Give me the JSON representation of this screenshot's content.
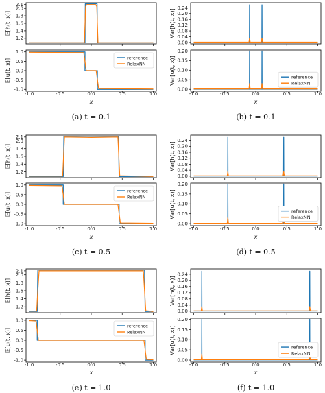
{
  "colors": {
    "reference": "#1f77b4",
    "relaxnn": "#ff7f0e"
  },
  "legend": {
    "reference": "reference",
    "relaxnn": "RelaxNN",
    "placement": "right"
  },
  "labels": {
    "xlabel": "x",
    "mean_h": "𝔼[h(t, x)]",
    "mean_u": "𝔼[u(t, x)]",
    "var_h": "Var[h(t, x)]",
    "var_u": "Var[u(t, x)]"
  },
  "captions": [
    "(a) t = 0.1",
    "(b) t = 0.1",
    "(c) t = 0.5",
    "(d) t = 0.5",
    "(e) t = 1.0",
    "(f) t = 1.0"
  ],
  "chart_data": [
    {
      "type": "line",
      "panel": "a",
      "time": 0.1,
      "top": {
        "ylabel": "𝔼[h(t, x)]",
        "yticks": [
          "1.2",
          "1.4",
          "1.6",
          "1.8",
          "2.0",
          "2.1"
        ],
        "ylim": [
          1.05,
          2.15
        ],
        "series": [
          {
            "name": "reference",
            "x": [
              -1,
              -0.1,
              -0.095,
              -0.085,
              0.085,
              0.095,
              0.1,
              1
            ],
            "y": [
              1.08,
              1.08,
              2.12,
              2.12,
              2.12,
              2.12,
              1.08,
              1.08
            ]
          },
          {
            "name": "RelaxNN",
            "x": [
              -1,
              -0.11,
              -0.09,
              -0.07,
              0.07,
              0.09,
              0.11,
              1
            ],
            "y": [
              1.08,
              1.08,
              2.05,
              2.1,
              2.1,
              2.05,
              1.08,
              1.08
            ]
          }
        ]
      },
      "bottom": {
        "ylabel": "𝔼[u(t, x)]",
        "yticks": [
          "-1.0",
          "-0.5",
          "0.0",
          "0.5",
          "1.0"
        ],
        "ylim": [
          -1.1,
          1.1
        ],
        "series": [
          {
            "name": "reference",
            "x": [
              -1,
              -0.1,
              -0.1,
              0.1,
              0.1,
              1
            ],
            "y": [
              1,
              1,
              0,
              0,
              -1,
              -1
            ]
          },
          {
            "name": "RelaxNN",
            "x": [
              -1,
              -0.12,
              -0.08,
              0.08,
              0.12,
              1
            ],
            "y": [
              0.98,
              0.96,
              0,
              0,
              -0.96,
              -0.98
            ]
          }
        ]
      },
      "xticks": [
        "-1.0",
        "-0.5",
        "0.0",
        "0.5",
        "1.0"
      ],
      "xlim": [
        -1.05,
        1.05
      ]
    },
    {
      "type": "line",
      "panel": "b",
      "time": 0.1,
      "top": {
        "ylabel": "Var[h(t, x)]",
        "yticks": [
          "0.00",
          "0.04",
          "0.08",
          "0.12",
          "0.16",
          "0.20",
          "0.24"
        ],
        "ylim": [
          -0.01,
          0.275
        ],
        "series": [
          {
            "name": "reference",
            "x": [
              -1,
              -0.102,
              -0.1,
              -0.098,
              0.098,
              0.1,
              0.102,
              1
            ],
            "y": [
              0.001,
              0.001,
              0.26,
              0.001,
              0.001,
              0.26,
              0.001,
              0.001
            ]
          },
          {
            "name": "RelaxNN",
            "x": [
              -1,
              -0.11,
              -0.1,
              -0.09,
              0.09,
              0.1,
              0.11,
              1
            ],
            "y": [
              0.002,
              0.002,
              0.03,
              0.002,
              0.002,
              0.03,
              0.002,
              0.002
            ]
          }
        ]
      },
      "bottom": {
        "ylabel": "Var[u(t, x)]",
        "yticks": [
          "0.00",
          "0.05",
          "0.10",
          "0.15",
          "0.20"
        ],
        "ylim": [
          -0.01,
          0.205
        ],
        "series": [
          {
            "name": "reference",
            "x": [
              -1,
              -0.102,
              -0.1,
              -0.098,
              0.098,
              0.1,
              0.102,
              1
            ],
            "y": [
              0.001,
              0.001,
              0.2,
              0.001,
              0.001,
              0.2,
              0.001,
              0.001
            ]
          },
          {
            "name": "RelaxNN",
            "x": [
              -1,
              -0.11,
              -0.1,
              -0.09,
              0.09,
              0.1,
              0.11,
              1
            ],
            "y": [
              0.002,
              0.002,
              0.03,
              0.002,
              0.002,
              0.03,
              0.002,
              0.002
            ]
          }
        ]
      },
      "xticks": [
        "-1.0",
        "-0.5",
        "0.0",
        "0.5",
        "1.0"
      ],
      "xlim": [
        -1.05,
        1.05
      ]
    },
    {
      "type": "line",
      "panel": "c",
      "time": 0.5,
      "top": {
        "ylabel": "𝔼[h(t, x)]",
        "yticks": [
          "1.2",
          "1.4",
          "1.6",
          "1.8",
          "2.0",
          "2.1"
        ],
        "ylim": [
          1.05,
          2.15
        ],
        "series": [
          {
            "name": "reference",
            "x": [
              -1,
              -0.45,
              -0.44,
              0.44,
              0.45,
              1
            ],
            "y": [
              1.08,
              1.08,
              2.12,
              2.12,
              1.08,
              1.08
            ]
          },
          {
            "name": "RelaxNN",
            "x": [
              -1,
              -0.46,
              -0.43,
              0.0,
              0.43,
              0.46,
              1
            ],
            "y": [
              1.09,
              1.09,
              2.1,
              2.09,
              2.1,
              1.1,
              1.08
            ]
          }
        ]
      },
      "bottom": {
        "ylabel": "𝔼[u(t, x)]",
        "yticks": [
          "-1.0",
          "-0.5",
          "0.0",
          "0.5",
          "1.0"
        ],
        "ylim": [
          -1.1,
          1.1
        ],
        "series": [
          {
            "name": "reference",
            "x": [
              -1,
              -0.45,
              -0.45,
              0.45,
              0.45,
              1
            ],
            "y": [
              1,
              1,
              0,
              0,
              -1,
              -1
            ]
          },
          {
            "name": "RelaxNN",
            "x": [
              -1,
              -0.47,
              -0.43,
              0.43,
              0.47,
              1
            ],
            "y": [
              0.98,
              0.96,
              0,
              0,
              -0.96,
              -0.98
            ]
          }
        ]
      },
      "xticks": [
        "-1.0",
        "-0.5",
        "0.0",
        "0.5",
        "1.0"
      ],
      "xlim": [
        -1.05,
        1.05
      ]
    },
    {
      "type": "line",
      "panel": "d",
      "time": 0.5,
      "top": {
        "ylabel": "Var[h(t, x)]",
        "yticks": [
          "0.00",
          "0.04",
          "0.08",
          "0.12",
          "0.16",
          "0.20",
          "0.24"
        ],
        "ylim": [
          -0.01,
          0.275
        ],
        "series": [
          {
            "name": "reference",
            "x": [
              -1,
              -0.452,
              -0.45,
              -0.448,
              0.448,
              0.45,
              0.452,
              1
            ],
            "y": [
              0.001,
              0.001,
              0.26,
              0.001,
              0.001,
              0.26,
              0.001,
              0.001
            ]
          },
          {
            "name": "RelaxNN",
            "x": [
              -1,
              -0.46,
              -0.45,
              -0.44,
              0.44,
              0.45,
              0.46,
              1
            ],
            "y": [
              0.002,
              0.002,
              0.03,
              0.002,
              0.002,
              0.03,
              0.002,
              0.002
            ]
          }
        ]
      },
      "bottom": {
        "ylabel": "Var[u(t, x)]",
        "yticks": [
          "0.00",
          "0.05",
          "0.10",
          "0.15",
          "0.20"
        ],
        "ylim": [
          -0.01,
          0.205
        ],
        "series": [
          {
            "name": "reference",
            "x": [
              -1,
              -0.452,
              -0.45,
              -0.448,
              0.448,
              0.45,
              0.452,
              1
            ],
            "y": [
              0.001,
              0.001,
              0.2,
              0.001,
              0.001,
              0.2,
              0.001,
              0.001
            ]
          },
          {
            "name": "RelaxNN",
            "x": [
              -1,
              -0.46,
              -0.45,
              -0.44,
              0.44,
              0.45,
              0.46,
              1
            ],
            "y": [
              0.002,
              0.002,
              0.03,
              0.002,
              0.002,
              0.03,
              0.002,
              0.002
            ]
          }
        ]
      },
      "xticks": [
        "-1.0",
        "-0.5",
        "0.0",
        "0.5",
        "1.0"
      ],
      "xlim": [
        -1.05,
        1.05
      ]
    },
    {
      "type": "line",
      "panel": "e",
      "time": 1.0,
      "top": {
        "ylabel": "𝔼[h(t, x)]",
        "yticks": [
          "1.2",
          "1.4",
          "1.6",
          "1.8",
          "2.0",
          "2.1"
        ],
        "ylim": [
          1.05,
          2.15
        ],
        "series": [
          {
            "name": "reference",
            "x": [
              -1,
              -0.87,
              -0.86,
              0.86,
              0.87,
              1
            ],
            "y": [
              1.08,
              1.08,
              2.12,
              2.12,
              1.08,
              1.08
            ]
          },
          {
            "name": "RelaxNN",
            "x": [
              -1,
              -0.88,
              -0.84,
              0.0,
              0.84,
              0.88,
              1
            ],
            "y": [
              1.09,
              1.09,
              2.1,
              2.1,
              2.1,
              1.1,
              1.08
            ]
          }
        ]
      },
      "bottom": {
        "ylabel": "𝔼[u(t, x)]",
        "yticks": [
          "-1.0",
          "-0.5",
          "0.0",
          "0.5",
          "1.0"
        ],
        "ylim": [
          -1.1,
          1.1
        ],
        "series": [
          {
            "name": "reference",
            "x": [
              -1,
              -0.87,
              -0.87,
              0.87,
              0.87,
              1
            ],
            "y": [
              1,
              1,
              0,
              0,
              -1,
              -1
            ]
          },
          {
            "name": "RelaxNN",
            "x": [
              -1,
              -0.89,
              -0.85,
              0.85,
              0.89,
              1
            ],
            "y": [
              0.98,
              0.96,
              0,
              0,
              -0.96,
              -0.98
            ]
          }
        ]
      },
      "xticks": [
        "-1.0",
        "-0.5",
        "0.0",
        "0.5",
        "1.0"
      ],
      "xlim": [
        -1.05,
        1.05
      ]
    },
    {
      "type": "line",
      "panel": "f",
      "time": 1.0,
      "top": {
        "ylabel": "Var[h(t, x)]",
        "yticks": [
          "0.00",
          "0.04",
          "0.08",
          "0.12",
          "0.16",
          "0.20",
          "0.24"
        ],
        "ylim": [
          -0.01,
          0.275
        ],
        "series": [
          {
            "name": "reference",
            "x": [
              -1,
              -0.872,
              -0.87,
              -0.868,
              0.868,
              0.87,
              0.872,
              1
            ],
            "y": [
              0.001,
              0.001,
              0.26,
              0.001,
              0.001,
              0.26,
              0.001,
              0.001
            ]
          },
          {
            "name": "RelaxNN",
            "x": [
              -1,
              -0.88,
              -0.87,
              -0.86,
              0.86,
              0.87,
              0.88,
              1
            ],
            "y": [
              0.002,
              0.002,
              0.03,
              0.002,
              0.002,
              0.03,
              0.002,
              0.002
            ]
          }
        ]
      },
      "bottom": {
        "ylabel": "Var[u(t, x)]",
        "yticks": [
          "0.00",
          "0.05",
          "0.10",
          "0.15",
          "0.20"
        ],
        "ylim": [
          -0.01,
          0.205
        ],
        "series": [
          {
            "name": "reference",
            "x": [
              -1,
              -0.872,
              -0.87,
              -0.868,
              0.868,
              0.87,
              0.872,
              1
            ],
            "y": [
              0.001,
              0.001,
              0.2,
              0.001,
              0.001,
              0.2,
              0.001,
              0.001
            ]
          },
          {
            "name": "RelaxNN",
            "x": [
              -1,
              -0.88,
              -0.87,
              -0.86,
              0.86,
              0.87,
              0.88,
              1
            ],
            "y": [
              0.002,
              0.002,
              0.03,
              0.002,
              0.002,
              0.03,
              0.002,
              0.002
            ]
          }
        ]
      },
      "xticks": [
        "-1.0",
        "-0.5",
        "0.0",
        "0.5",
        "1.0"
      ],
      "xlim": [
        -1.05,
        1.05
      ]
    }
  ]
}
